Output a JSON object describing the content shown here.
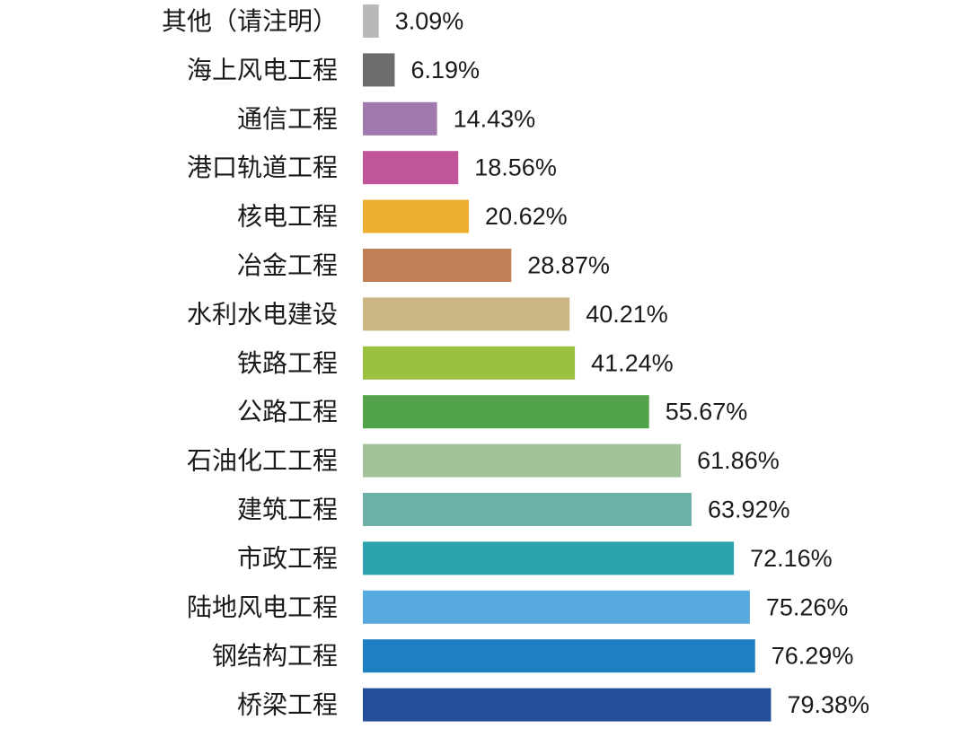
{
  "chart_data": {
    "type": "bar",
    "orientation": "horizontal",
    "categories": [
      "其他（请注明）",
      "海上风电工程",
      "通信工程",
      "港口轨道工程",
      "核电工程",
      "冶金工程",
      "水利水电建设",
      "铁路工程",
      "公路工程",
      "石油化工工程",
      "建筑工程",
      "市政工程",
      "陆地风电工程",
      "钢结构工程",
      "桥梁工程"
    ],
    "values": [
      3.09,
      6.19,
      14.43,
      18.56,
      20.62,
      28.87,
      40.21,
      41.24,
      55.67,
      61.86,
      63.92,
      72.16,
      75.26,
      76.29,
      79.38
    ],
    "value_labels": [
      "3.09%",
      "6.19%",
      "14.43%",
      "18.56%",
      "20.62%",
      "28.87%",
      "40.21%",
      "41.24%",
      "55.67%",
      "61.86%",
      "63.92%",
      "72.16%",
      "75.26%",
      "76.29%",
      "79.38%"
    ],
    "colors": [
      "#b8b8b8",
      "#6d6d6d",
      "#a07aae",
      "#c0559a",
      "#edaf30",
      "#c17f56",
      "#cbb784",
      "#9bc23f",
      "#52a34a",
      "#a2c399",
      "#6cb0a7",
      "#2da4ad",
      "#58a9dd",
      "#1f7fc3",
      "#254e9a"
    ],
    "unit": "%",
    "title": "",
    "xlabel": "",
    "ylabel": "",
    "xlim": [
      0,
      100
    ],
    "grid": false,
    "legend": "none"
  }
}
